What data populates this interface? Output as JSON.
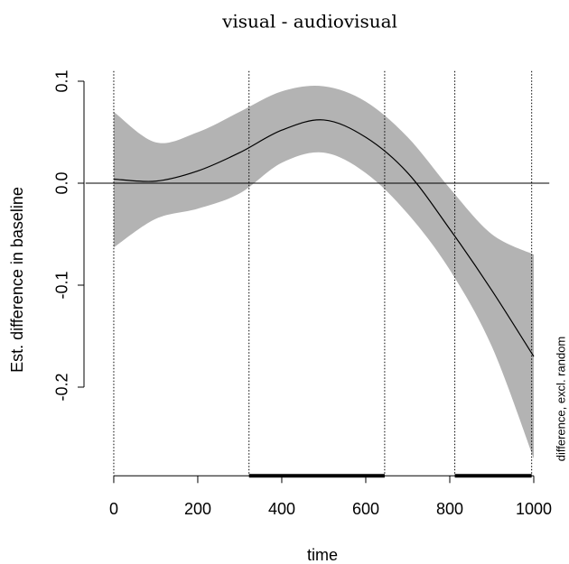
{
  "chart_data": {
    "type": "line",
    "title": "visual - audiovisual",
    "xlabel": "time",
    "ylabel": "Est. difference in baseline",
    "side_note": "difference, excl. random",
    "x": [
      0,
      100,
      200,
      300,
      400,
      500,
      600,
      700,
      800,
      900,
      1000
    ],
    "values": [
      0.004,
      0.002,
      0.012,
      0.03,
      0.052,
      0.062,
      0.045,
      0.01,
      -0.045,
      -0.105,
      -0.17
    ],
    "upper": [
      0.07,
      0.04,
      0.05,
      0.07,
      0.09,
      0.095,
      0.08,
      0.045,
      -0.005,
      -0.05,
      -0.07
    ],
    "lower": [
      -0.063,
      -0.035,
      -0.025,
      -0.01,
      0.02,
      0.03,
      0.01,
      -0.03,
      -0.085,
      -0.16,
      -0.27
    ],
    "color": "#000000",
    "band_color": "#b3b3b3",
    "hline": 0,
    "vlines": [
      0,
      322,
      645,
      812,
      995
    ],
    "intervals": [
      [
        322,
        645
      ],
      [
        812,
        995
      ]
    ],
    "xlim": [
      -67,
      1037
    ],
    "ylim": [
      -0.287,
      0.11
    ],
    "xticks": [
      0,
      200,
      400,
      600,
      800,
      1000
    ],
    "yticks": [
      -0.2,
      -0.1,
      {
        "value": 0,
        "label": "0.0"
      },
      0.1
    ]
  }
}
